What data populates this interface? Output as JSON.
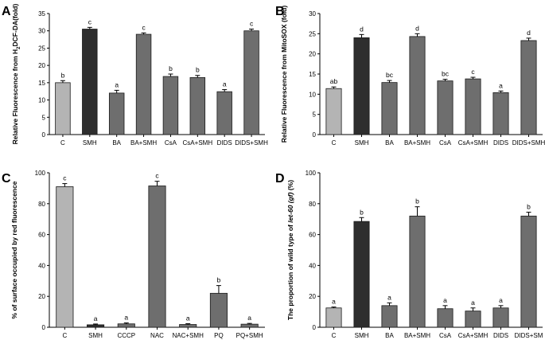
{
  "chart_data": [
    {
      "type": "bar",
      "panel_label": "A",
      "ylabel": "Relative Fluorescence from H2DCF-DA(fold)",
      "ylabel_parts": [
        "Relative Fluorescence from H",
        "2",
        "DCF-DA(fold)"
      ],
      "categories": [
        "C",
        "SMH",
        "BA",
        "BA+SMH",
        "CsA",
        "CsA+SMH",
        "DIDS",
        "DIDS+SMH"
      ],
      "values": [
        15.0,
        30.5,
        12.0,
        29.0,
        16.8,
        16.5,
        12.4,
        30.0
      ],
      "errors": [
        0.6,
        0.5,
        0.8,
        0.4,
        0.7,
        0.6,
        0.6,
        0.5
      ],
      "letters": [
        "b",
        "c",
        "a",
        "c",
        "b",
        "b",
        "a",
        "c"
      ],
      "bar_colors": [
        "#b4b4b4",
        "#2e2e2e",
        "#6e6e6e",
        "#6e6e6e",
        "#6e6e6e",
        "#6e6e6e",
        "#6e6e6e",
        "#6e6e6e"
      ],
      "ylim": [
        0,
        35
      ],
      "yticks": [
        0,
        5,
        10,
        15,
        20,
        25,
        30,
        35
      ]
    },
    {
      "type": "bar",
      "panel_label": "B",
      "ylabel": "Relative Fluorescence from MitoSOX (fold)",
      "categories": [
        "C",
        "SMH",
        "BA",
        "BA+SMH",
        "CsA",
        "CsA+SMH",
        "DIDS",
        "DIDS+SMH"
      ],
      "values": [
        11.4,
        24.0,
        12.9,
        24.3,
        13.3,
        13.8,
        10.4,
        23.3
      ],
      "errors": [
        0.4,
        0.8,
        0.5,
        0.7,
        0.4,
        0.4,
        0.4,
        0.6
      ],
      "letters": [
        "ab",
        "d",
        "bc",
        "d",
        "bc",
        "c",
        "a",
        "d"
      ],
      "bar_colors": [
        "#b4b4b4",
        "#2e2e2e",
        "#6e6e6e",
        "#6e6e6e",
        "#6e6e6e",
        "#6e6e6e",
        "#6e6e6e",
        "#6e6e6e"
      ],
      "ylim": [
        0,
        30
      ],
      "yticks": [
        0,
        5,
        10,
        15,
        20,
        25,
        30
      ]
    },
    {
      "type": "bar",
      "panel_label": "C",
      "ylabel": "% of surface occupied by red fluorescence",
      "categories": [
        "C",
        "SMH",
        "CCCP",
        "NAC",
        "NAC+SMH",
        "PQ",
        "PQ+SMH"
      ],
      "values": [
        91.0,
        1.6,
        2.2,
        91.5,
        1.8,
        22.0,
        2.0
      ],
      "errors": [
        2.0,
        0.5,
        0.6,
        3.0,
        0.5,
        5.0,
        0.5
      ],
      "letters": [
        "c",
        "a",
        "a",
        "c",
        "a",
        "b",
        "a"
      ],
      "bar_colors": [
        "#b4b4b4",
        "#2e2e2e",
        "#6e6e6e",
        "#6e6e6e",
        "#6e6e6e",
        "#6e6e6e",
        "#6e6e6e"
      ],
      "ylim": [
        0,
        100
      ],
      "yticks": [
        0,
        20,
        40,
        60,
        80,
        100
      ]
    },
    {
      "type": "bar",
      "panel_label": "D",
      "ylabel": "The proportion of wild type of let-60 (gf) (%)",
      "ylabel_parts": [
        "The proportion of wild type of ",
        "let-60 (gf)",
        " (%)"
      ],
      "categories": [
        "C",
        "SMH",
        "BA",
        "BA+SMH",
        "CsA",
        "CsA+SMH",
        "DIDS",
        "DIDS+SM"
      ],
      "values": [
        12.5,
        68.5,
        14.0,
        72.0,
        12.0,
        10.5,
        12.5,
        72.0
      ],
      "errors": [
        0.6,
        2.5,
        1.8,
        6.0,
        2.0,
        2.0,
        1.5,
        2.5
      ],
      "letters": [
        "a",
        "b",
        "a",
        "b",
        "a",
        "a",
        "a",
        "b"
      ],
      "bar_colors": [
        "#b4b4b4",
        "#2e2e2e",
        "#6e6e6e",
        "#6e6e6e",
        "#6e6e6e",
        "#6e6e6e",
        "#6e6e6e",
        "#6e6e6e"
      ],
      "ylim": [
        0,
        100
      ],
      "yticks": [
        0,
        20,
        40,
        60,
        80,
        100
      ]
    }
  ]
}
